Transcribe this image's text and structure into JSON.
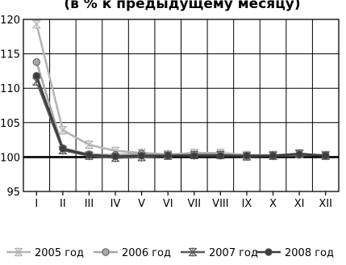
{
  "chart_data": {
    "type": "line",
    "title": "",
    "subtitle": "(в % к предыдущему месяцу)",
    "xlabel": "",
    "ylabel": "",
    "categories": [
      "I",
      "II",
      "III",
      "IV",
      "V",
      "VI",
      "VII",
      "VIII",
      "IX",
      "X",
      "XI",
      "XII"
    ],
    "ylim": [
      95,
      120
    ],
    "yticks": [
      95,
      100,
      105,
      110,
      115,
      120
    ],
    "grid": true,
    "legend_position": "bottom",
    "series": [
      {
        "name": "2005 год",
        "color": "#b4b4b4",
        "marker": "star",
        "values": [
          119.3,
          103.9,
          101.8,
          100.9,
          100.6,
          100.4,
          100.6,
          100.6,
          100.3,
          100.3,
          100.4,
          100.3
        ]
      },
      {
        "name": "2006 год",
        "color": "#a8a8a8",
        "marker": "circle",
        "values": [
          113.8,
          101.3,
          100.4,
          100.3,
          100.5,
          100.3,
          100.3,
          100.2,
          100.2,
          100.2,
          100.3,
          100.3
        ]
      },
      {
        "name": "2007 год",
        "color": "#5a5a5a",
        "marker": "star",
        "values": [
          111.0,
          101.0,
          100.2,
          99.9,
          100.0,
          100.2,
          100.3,
          100.3,
          100.1,
          100.2,
          100.5,
          100.2
        ]
      },
      {
        "name": "2008 год",
        "color": "#3c3c3c",
        "marker": "circle",
        "values": [
          111.8,
          101.2,
          100.3,
          100.1,
          100.2,
          100.2,
          100.2,
          100.2,
          100.2,
          100.2,
          100.4,
          100.2
        ]
      }
    ]
  }
}
